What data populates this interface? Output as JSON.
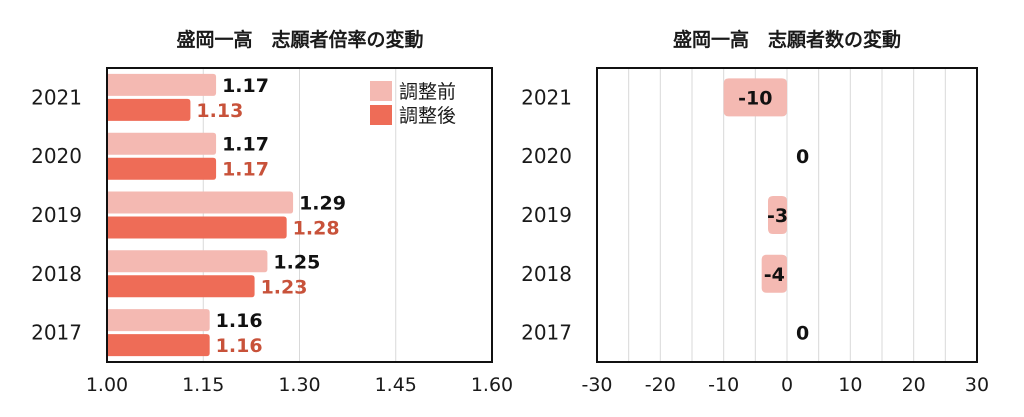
{
  "chart_data": [
    {
      "type": "bar",
      "orientation": "horizontal",
      "title": "盛岡一高　志願者倍率の変動",
      "categories": [
        "2021",
        "2020",
        "2019",
        "2018",
        "2017"
      ],
      "series": [
        {
          "name": "調整前",
          "values": [
            1.17,
            1.17,
            1.29,
            1.25,
            1.16
          ],
          "labels": [
            "1.17",
            "1.17",
            "1.29",
            "1.25",
            "1.16"
          ],
          "color": "#f4b9b2"
        },
        {
          "name": "調整後",
          "values": [
            1.13,
            1.17,
            1.28,
            1.23,
            1.16
          ],
          "labels": [
            "1.13",
            "1.17",
            "1.28",
            "1.23",
            "1.16"
          ],
          "color": "#ee6c57"
        }
      ],
      "xlim": [
        1.0,
        1.6
      ],
      "xticks": [
        "1.00",
        "1.15",
        "1.30",
        "1.45",
        "1.60"
      ],
      "grid": true,
      "legend": "top-right",
      "label_color_after": "#c8523a"
    },
    {
      "type": "bar",
      "orientation": "horizontal",
      "title": "盛岡一高　志願者数の変動",
      "categories": [
        "2021",
        "2020",
        "2019",
        "2018",
        "2017"
      ],
      "series": [
        {
          "values": [
            -10,
            0,
            -3,
            -4,
            0
          ],
          "labels": [
            "-10",
            "0",
            "-3",
            "-4",
            "0"
          ],
          "color": "#f4b9b2"
        }
      ],
      "xlim": [
        -30,
        30
      ],
      "xticks": [
        "-30",
        "-20",
        "-10",
        "0",
        "10",
        "20",
        "30"
      ],
      "grid": true
    }
  ]
}
